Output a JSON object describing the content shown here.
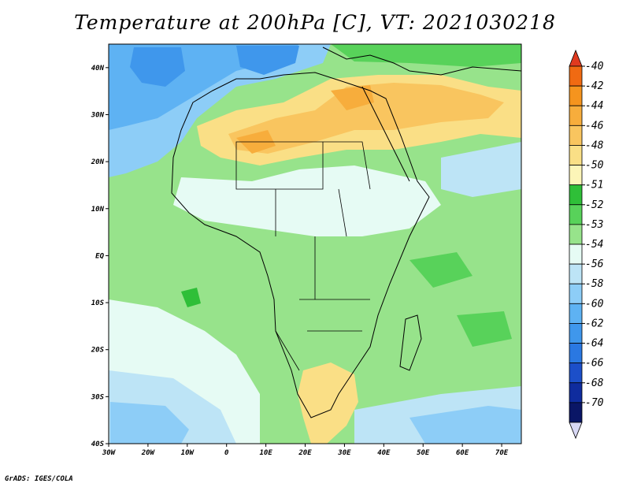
{
  "title": "Temperature at 200hPa [C], VT: 2021030218",
  "credit": "GrADS: IGES/COLA",
  "map": {
    "lon_labels": [
      "30W",
      "20W",
      "10W",
      "0",
      "10E",
      "20E",
      "30E",
      "40E",
      "50E",
      "60E",
      "70E"
    ],
    "lat_labels": [
      "40N",
      "30N",
      "20N",
      "10N",
      "EQ",
      "10S",
      "20S",
      "30S",
      "40S"
    ]
  },
  "colorbar": {
    "labels": [
      "-40",
      "-42",
      "-44",
      "-46",
      "-48",
      "-50",
      "-51",
      "-52",
      "-53",
      "-54",
      "-56",
      "-58",
      "-60",
      "-62",
      "-64",
      "-66",
      "-68",
      "-70"
    ],
    "colors": [
      "#e03a1f",
      "#f06a12",
      "#f5941e",
      "#f7ad3c",
      "#f9c55f",
      "#fadf86",
      "#fcf5b8",
      "#2fbf38",
      "#58d25a",
      "#97e38b",
      "#e6fbf4",
      "#bde4f6",
      "#8dcdf7",
      "#5eb2f3",
      "#3f97ec",
      "#2a78e2",
      "#1c4fc9",
      "#0f2c9e",
      "#0a1666",
      "#d8d8f5"
    ]
  }
}
